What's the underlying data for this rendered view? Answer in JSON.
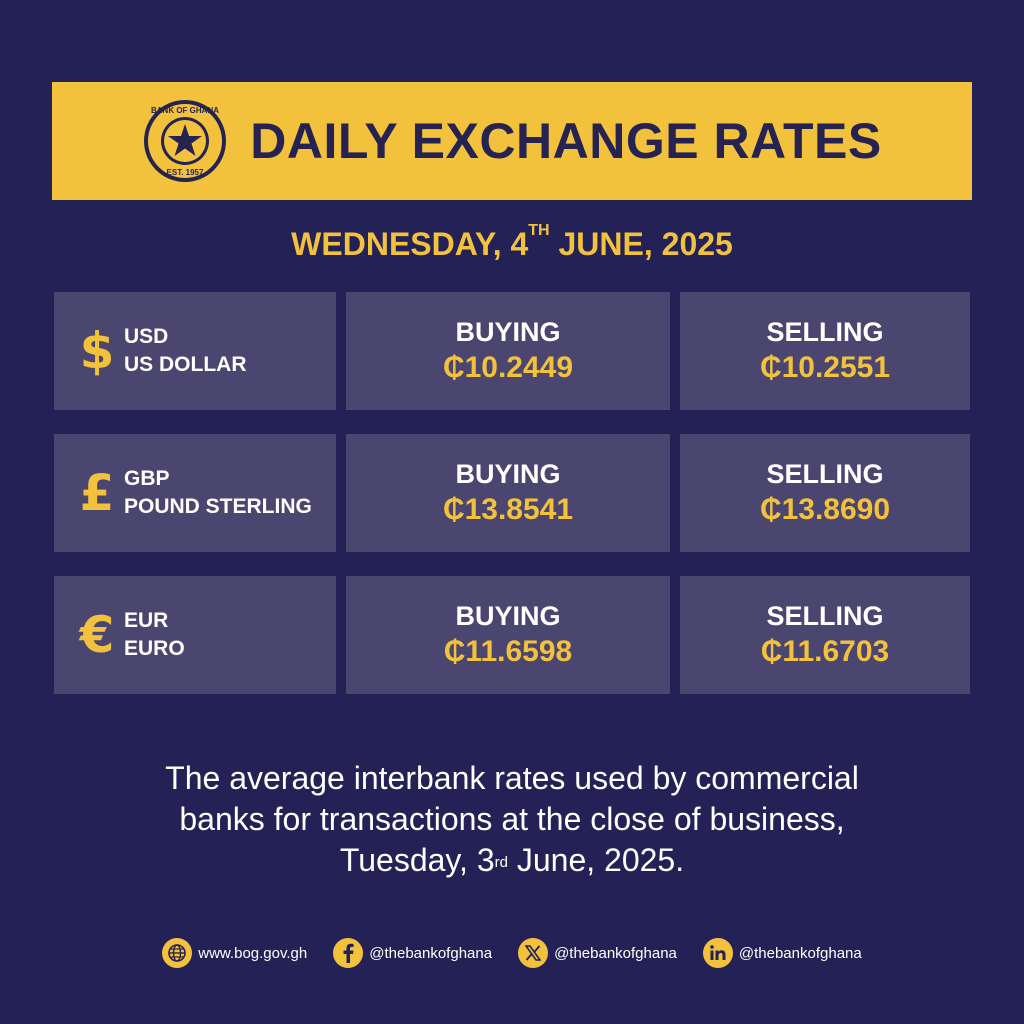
{
  "header": {
    "logo_text_top": "BANK OF GHANA",
    "logo_text_bottom": "EST. 1957",
    "title": "DAILY EXCHANGE RATES"
  },
  "date": {
    "prefix": "WEDNESDAY, 4",
    "suffix_sup": "TH",
    "rest": " JUNE, 2025"
  },
  "rates": [
    {
      "symbol": "$",
      "code": "USD",
      "name": "US DOLLAR",
      "buying_label": "BUYING",
      "buying": "₵10.2449",
      "selling_label": "SELLING",
      "selling": "₵10.2551"
    },
    {
      "symbol": "£",
      "code": "GBP",
      "name": "POUND STERLING",
      "buying_label": "BUYING",
      "buying": "₵13.8541",
      "selling_label": "SELLING",
      "selling": "₵13.8690"
    },
    {
      "symbol": "€",
      "code": "EUR",
      "name": "EURO",
      "buying_label": "BUYING",
      "buying": "₵11.6598",
      "selling_label": "SELLING",
      "selling": "₵11.6703"
    }
  ],
  "note": {
    "line1": "The average interbank rates used by commercial",
    "line2": "banks for transactions at the close of business,",
    "line3_prefix": "Tuesday, 3",
    "line3_sup": "rd",
    "line3_rest": " June, 2025."
  },
  "footer": {
    "website": "www.bog.gov.gh",
    "facebook": "@thebankofghana",
    "x": "@thebankofghana",
    "linkedin": "@thebankofghana"
  },
  "colors": {
    "background": "#232155",
    "accent": "#f3c23d",
    "cell": "#4b466f"
  }
}
